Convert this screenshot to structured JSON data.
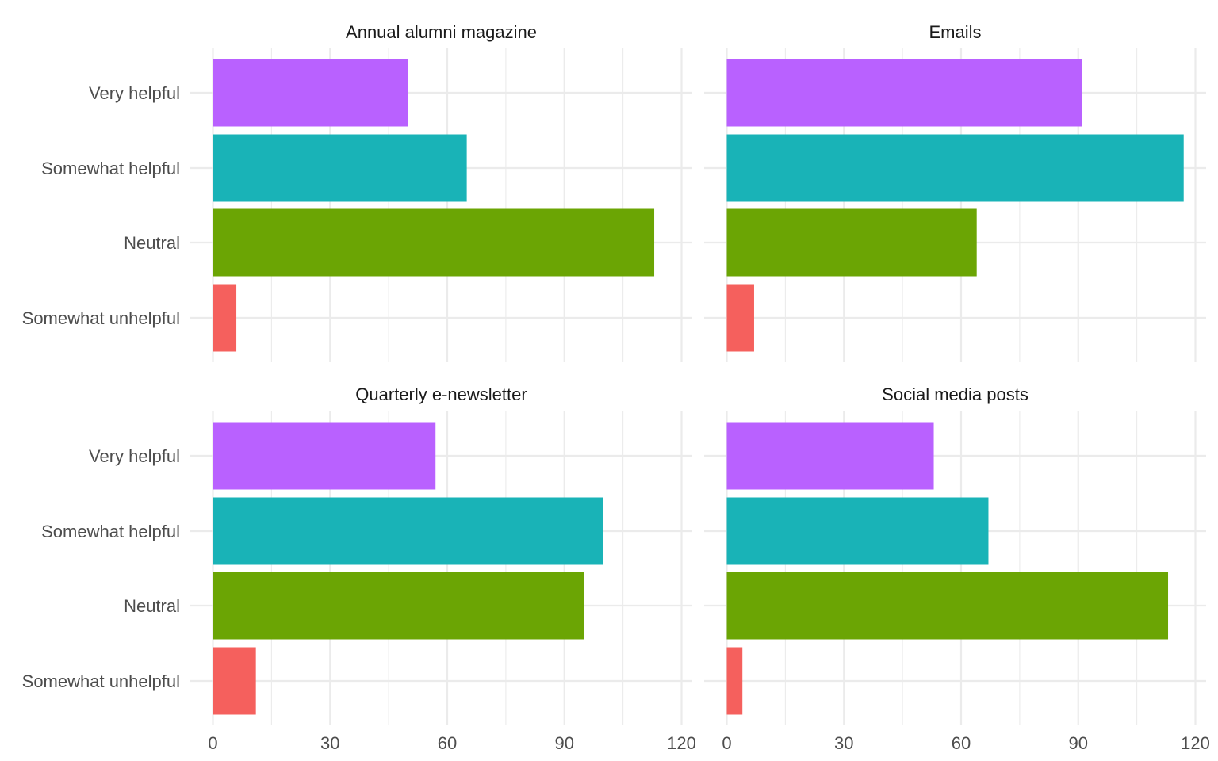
{
  "chart_data": {
    "type": "bar",
    "orientation": "horizontal",
    "layout": "facet grid, 2 rows x 2 columns, shared axes",
    "categories": [
      "Very helpful",
      "Somewhat helpful",
      "Neutral",
      "Somewhat unhelpful"
    ],
    "colors": {
      "Very helpful": "#b961ff",
      "Somewhat helpful": "#19b3b7",
      "Neutral": "#6ba504",
      "Somewhat unhelpful": "#f5605d"
    },
    "xlim": [
      0,
      120
    ],
    "x_ticks": [
      0,
      30,
      60,
      90,
      120
    ],
    "x_tick_labels": [
      "0",
      "30",
      "60",
      "90",
      "120"
    ],
    "grid": true,
    "legend": "none",
    "xlabel": "",
    "ylabel": "",
    "panels": [
      {
        "title": "Annual alumni magazine",
        "values": {
          "Very helpful": 50,
          "Somewhat helpful": 65,
          "Neutral": 113,
          "Somewhat unhelpful": 6
        }
      },
      {
        "title": "Emails",
        "values": {
          "Very helpful": 91,
          "Somewhat helpful": 117,
          "Neutral": 64,
          "Somewhat unhelpful": 7
        }
      },
      {
        "title": "Quarterly e-newsletter",
        "values": {
          "Very helpful": 57,
          "Somewhat helpful": 100,
          "Neutral": 95,
          "Somewhat unhelpful": 11
        }
      },
      {
        "title": "Social media posts",
        "values": {
          "Very helpful": 53,
          "Somewhat helpful": 67,
          "Neutral": 113,
          "Somewhat unhelpful": 4
        }
      }
    ]
  }
}
